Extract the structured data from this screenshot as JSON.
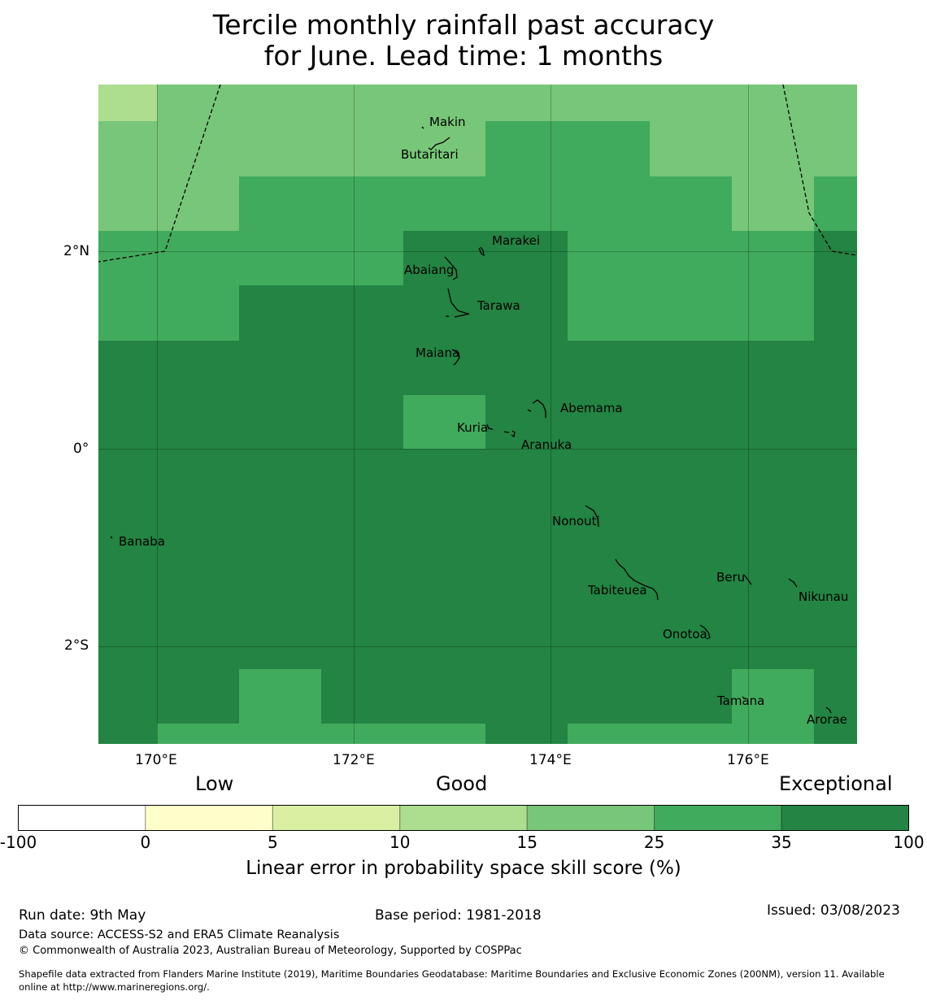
{
  "title": {
    "line1": "Tercile monthly rainfall past accuracy",
    "line2": "for June. Lead time: 1 months"
  },
  "map": {
    "lat_labels": [
      "2°N",
      "0°",
      "2°S"
    ],
    "lon_labels": [
      "170°E",
      "172°E",
      "174°E",
      "176°E"
    ],
    "islands": [
      "Makin",
      "Butaritari",
      "Marakei",
      "Abaiang",
      "Tarawa",
      "Maiana",
      "Abemama",
      "Kuria",
      "Aranuka",
      "Nonouti",
      "Banaba",
      "Beru",
      "Tabiteuea",
      "Nikunau",
      "Onotoa",
      "Tamana",
      "Arorae"
    ]
  },
  "colorbar": {
    "category_labels": [
      "Low",
      "Good",
      "Exceptional"
    ],
    "ticks": [
      "-100",
      "0",
      "5",
      "10",
      "15",
      "25",
      "35",
      "100"
    ],
    "colors": [
      "#ffffff",
      "#ffffcc",
      "#d9f0a3",
      "#addd8e",
      "#78c679",
      "#41ab5d",
      "#238443"
    ],
    "title": "Linear error in probability space skill score (%)"
  },
  "footer": {
    "run_date": "Run date: 9th May",
    "base_period": "Base period: 1981-2018",
    "issued": "Issued: 03/08/2023",
    "data_source": "Data source: ACCESS-S2 and ERA5 Climate Reanalysis",
    "copyright": "© Commonwealth of Australia 2023, Australian Bureau of Meteorology, Supported by COSPPac",
    "shapefile_line1": "Shapefile data extracted from Flanders Marine Institute (2019), Maritime Boundaries Geodatabase: Maritime Boundaries and Exclusive Economic Zones (200NM), version 11. Available",
    "shapefile_line2": "online at http://www.marineregions.org/."
  }
}
